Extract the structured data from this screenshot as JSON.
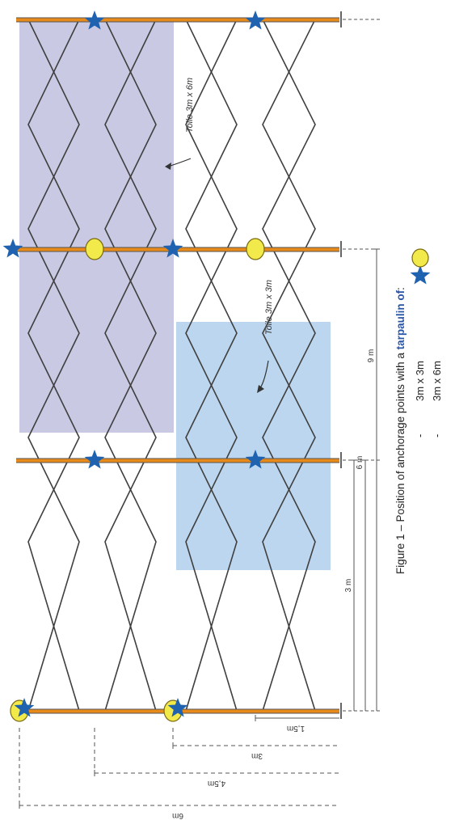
{
  "labels": {
    "toile_6": "Toile 3m x 6m",
    "toile_3": "Toile 3m x 3m"
  },
  "dimensions_left": [
    "6m",
    "4,5m",
    "3m",
    "1,5m"
  ],
  "dimensions_bottom": [
    "3 m",
    "6 m",
    "9 m"
  ],
  "caption": {
    "prefix": "Figure 1 – Position of anchorage points with a ",
    "highlight": "tarpaulin of",
    "suffix": ":",
    "item1_dash": "-",
    "item1_text": "3m x 3m",
    "item2_dash": "-",
    "item2_text": "3m x 6m"
  },
  "colors": {
    "tarp_3x6": "#c9c9e3",
    "tarp_3x3": "#bcd6ef",
    "pole": "#e88a1a",
    "brace": "#3f3f3f",
    "star": "#1f63b0",
    "circle": "#f2e94a",
    "highlight_text": "#2a56a6"
  },
  "legend_icons": [
    "star-icon",
    "circle-icon"
  ]
}
